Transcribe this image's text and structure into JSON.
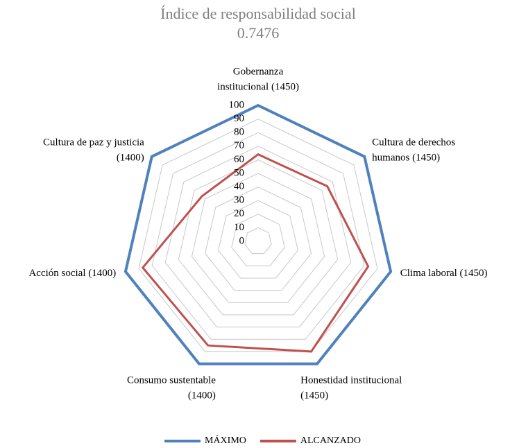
{
  "chart_data": {
    "type": "radar",
    "title": "Índice de responsabilidad social",
    "subtitle": "0.7476",
    "categories": [
      [
        "Gobernanza",
        "institucional (1450)"
      ],
      [
        "Cultura de derechos",
        "humanos (1450)"
      ],
      [
        "Clima laboral (1450)"
      ],
      [
        "Honestidad institucional",
        "(1450)"
      ],
      [
        "Consumo sustentable",
        "(1400)"
      ],
      [
        "Acción social (1400)"
      ],
      [
        "Cultura de paz y justicia",
        "(1400)"
      ]
    ],
    "series": [
      {
        "name": "MÁXIMO",
        "color": "#4f81bd",
        "values": [
          100,
          100,
          100,
          100,
          100,
          100,
          100
        ]
      },
      {
        "name": "ALCANZADO",
        "color": "#c0504d",
        "values": [
          64,
          65,
          83,
          90,
          85,
          87,
          53
        ]
      }
    ],
    "ylim": [
      0,
      100
    ],
    "yticks": [
      0,
      10,
      20,
      30,
      40,
      50,
      60,
      70,
      80,
      90,
      100
    ],
    "grid": true,
    "legend": "bottom"
  }
}
